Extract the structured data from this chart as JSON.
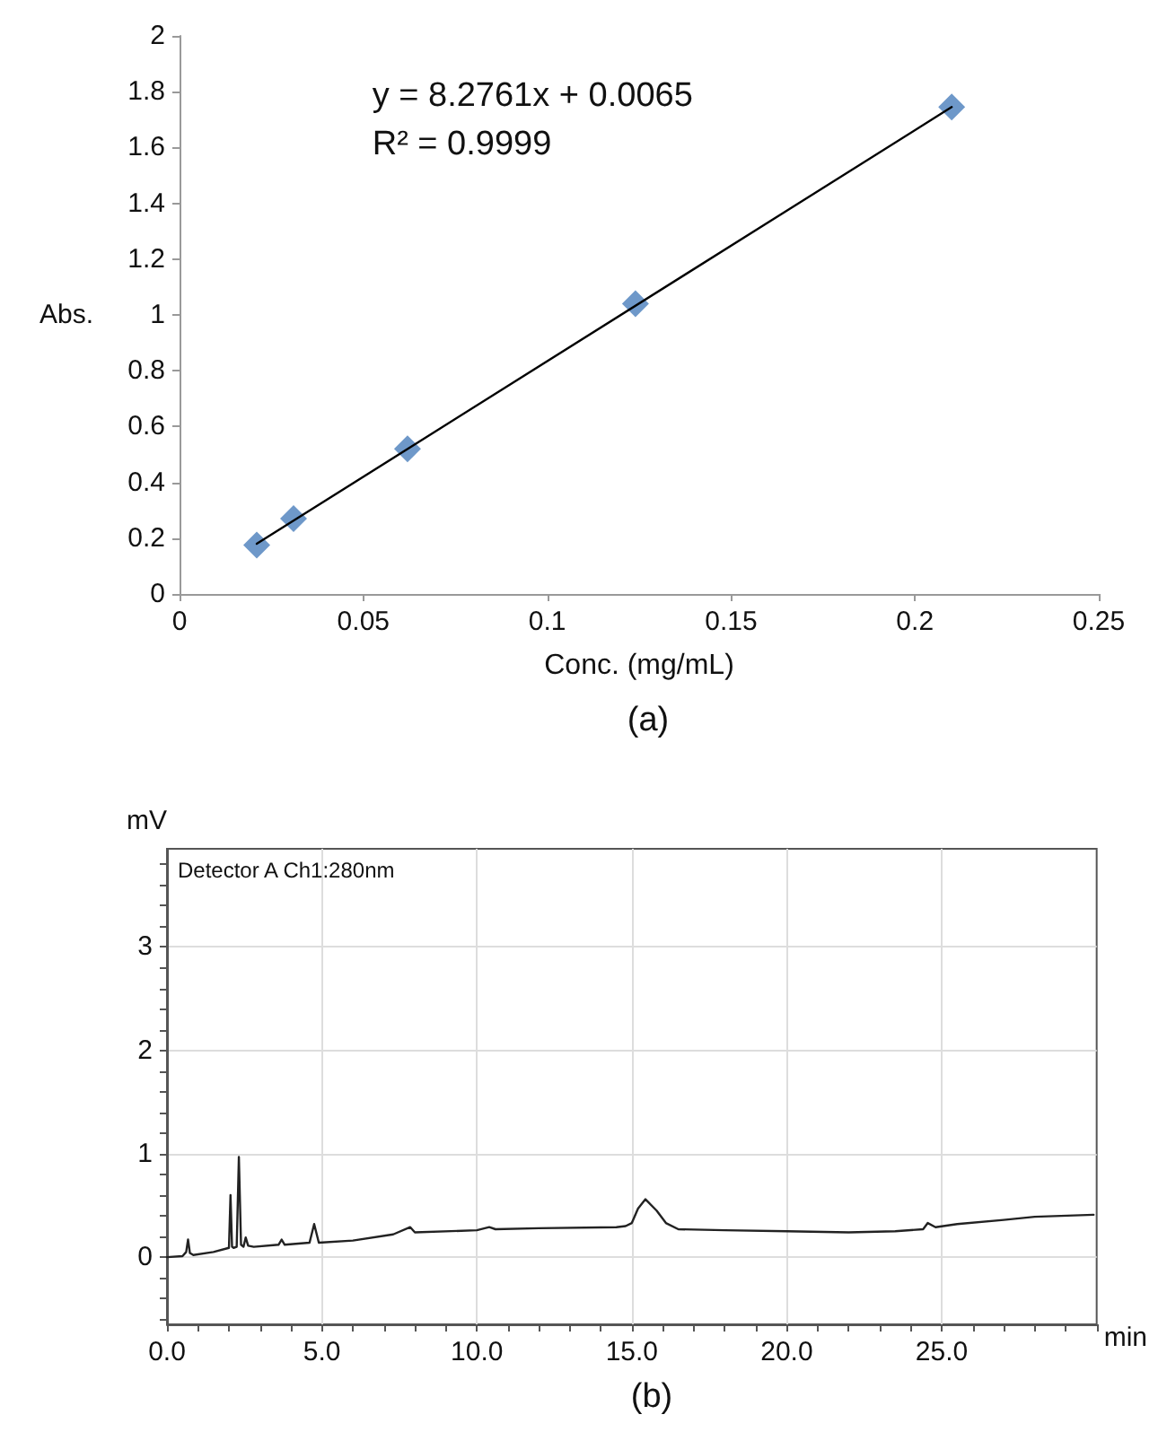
{
  "chart_data": [
    {
      "type": "scatter",
      "title": "(a)",
      "xlabel": "Conc. (mg/mL)",
      "ylabel": "Abs.",
      "x": [
        0.021,
        0.031,
        0.062,
        0.124,
        0.21
      ],
      "series": [
        {
          "type": "scatter",
          "color": "#4a7ebb",
          "marker": "diamond",
          "values": [
            0.175,
            0.27,
            0.52,
            1.04,
            1.745
          ]
        },
        {
          "type": "line",
          "color": "#000000",
          "marker": "none",
          "x": [
            0.021,
            0.21
          ],
          "values": [
            0.18,
            1.745
          ]
        }
      ],
      "annotations": [
        "y = 8.2761x + 0.0065",
        "R² = 0.9999"
      ],
      "xlim": [
        0,
        0.25
      ],
      "xticks": [
        0,
        0.05,
        0.1,
        0.15,
        0.2,
        0.25
      ],
      "ylim": [
        0,
        2
      ],
      "yticks": [
        0,
        0.2,
        0.4,
        0.6,
        0.8,
        1,
        1.2,
        1.4,
        1.6,
        1.8,
        2
      ],
      "grid": false
    },
    {
      "type": "line",
      "title": "(b)",
      "xlabel": "min",
      "ylabel": "mV",
      "marker": "none",
      "x": [
        0,
        0.5,
        0.62,
        0.68,
        0.74,
        0.85,
        1.5,
        2.0,
        2.05,
        2.1,
        2.15,
        2.25,
        2.32,
        2.39,
        2.47,
        2.54,
        2.62,
        2.8,
        3.6,
        3.7,
        3.8,
        4.6,
        4.75,
        4.9,
        6.0,
        7.3,
        7.85,
        8.0,
        10.0,
        10.4,
        10.6,
        12.0,
        14.5,
        14.8,
        15.0,
        15.2,
        15.44,
        15.8,
        16.1,
        16.5,
        18.0,
        20.0,
        22.0,
        23.5,
        24.4,
        24.55,
        24.8,
        25.5,
        27.0,
        28.0,
        29.9
      ],
      "series": [
        {
          "color": "#222222",
          "values": [
            0,
            0.01,
            0.05,
            0.17,
            0.04,
            0.02,
            0.05,
            0.09,
            0.6,
            0.1,
            0.09,
            0.1,
            0.97,
            0.12,
            0.1,
            0.19,
            0.11,
            0.1,
            0.12,
            0.17,
            0.12,
            0.14,
            0.32,
            0.14,
            0.16,
            0.22,
            0.29,
            0.24,
            0.26,
            0.29,
            0.27,
            0.28,
            0.29,
            0.3,
            0.33,
            0.47,
            0.56,
            0.45,
            0.33,
            0.27,
            0.26,
            0.25,
            0.24,
            0.25,
            0.27,
            0.33,
            0.29,
            0.32,
            0.36,
            0.39,
            0.41
          ]
        }
      ],
      "annotations": [
        "Detector A Ch1:280nm"
      ],
      "xlim": [
        0,
        30
      ],
      "xticks": [
        {
          "value": 0,
          "label": "0.0"
        },
        {
          "value": 1,
          "label": null
        },
        {
          "value": 2,
          "label": null
        },
        {
          "value": 3,
          "label": null
        },
        {
          "value": 4,
          "label": null
        },
        {
          "value": 5,
          "label": "5.0"
        },
        {
          "value": 6,
          "label": null
        },
        {
          "value": 7,
          "label": null
        },
        {
          "value": 8,
          "label": null
        },
        {
          "value": 9,
          "label": null
        },
        {
          "value": 10,
          "label": "10.0"
        },
        {
          "value": 11,
          "label": null
        },
        {
          "value": 12,
          "label": null
        },
        {
          "value": 13,
          "label": null
        },
        {
          "value": 14,
          "label": null
        },
        {
          "value": 15,
          "label": "15.0"
        },
        {
          "value": 16,
          "label": null
        },
        {
          "value": 17,
          "label": null
        },
        {
          "value": 18,
          "label": null
        },
        {
          "value": 19,
          "label": null
        },
        {
          "value": 20,
          "label": "20.0"
        },
        {
          "value": 21,
          "label": null
        },
        {
          "value": 22,
          "label": null
        },
        {
          "value": 23,
          "label": null
        },
        {
          "value": 24,
          "label": null
        },
        {
          "value": 25,
          "label": "25.0"
        },
        {
          "value": 26,
          "label": null
        },
        {
          "value": 27,
          "label": null
        },
        {
          "value": 28,
          "label": null
        },
        {
          "value": 29,
          "label": null
        },
        {
          "value": 30,
          "label": null
        }
      ],
      "ylim": [
        -0.65,
        3.95
      ],
      "yticks": [
        {
          "value": -0.6,
          "label": null
        },
        {
          "value": -0.4,
          "label": null
        },
        {
          "value": -0.2,
          "label": null
        },
        0,
        {
          "value": 0.2,
          "label": null
        },
        {
          "value": 0.4,
          "label": null
        },
        {
          "value": 0.6,
          "label": null
        },
        {
          "value": 0.8,
          "label": null
        },
        1,
        {
          "value": 1.2,
          "label": null
        },
        {
          "value": 1.4,
          "label": null
        },
        {
          "value": 1.6,
          "label": null
        },
        {
          "value": 1.8,
          "label": null
        },
        2,
        {
          "value": 2.2,
          "label": null
        },
        {
          "value": 2.4,
          "label": null
        },
        {
          "value": 2.6,
          "label": null
        },
        {
          "value": 2.8,
          "label": null
        },
        3,
        {
          "value": 3.2,
          "label": null
        },
        {
          "value": 3.4,
          "label": null
        },
        {
          "value": 3.6,
          "label": null
        },
        {
          "value": 3.8,
          "label": null
        }
      ],
      "grid": true
    }
  ]
}
